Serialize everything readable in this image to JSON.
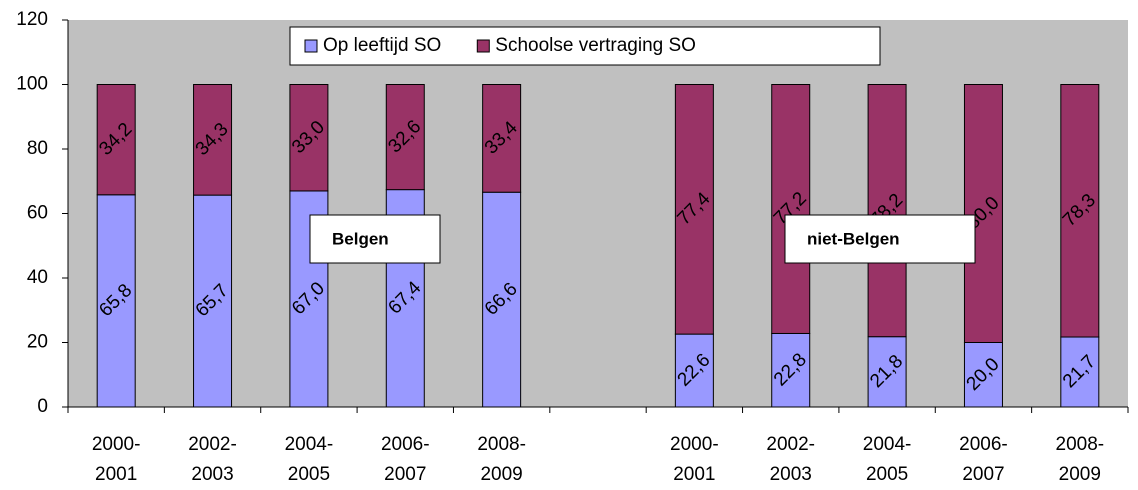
{
  "chart_data": {
    "type": "stacked-bar",
    "categories": [
      "2000-\n2001",
      "2002-\n2003",
      "2004-\n2005",
      "2006-\n2007",
      "2008-\n2009",
      null,
      "2000-\n2001",
      "2002-\n2003",
      "2004-\n2005",
      "2006-\n2007",
      "2008-\n2009"
    ],
    "series": [
      {
        "name": "Op leeftijd SO",
        "color": "#9999ff",
        "values": [
          65.8,
          65.7,
          67.0,
          67.4,
          66.6,
          null,
          22.6,
          22.8,
          21.8,
          20.0,
          21.7
        ],
        "value_labels": [
          "65,8",
          "65,7",
          "67,0",
          "67,4",
          "66,6",
          null,
          "22,6",
          "22,8",
          "21,8",
          "20,0",
          "21,7"
        ]
      },
      {
        "name": "Schoolse vertraging SO",
        "color": "#993366",
        "values": [
          34.2,
          34.3,
          33.0,
          32.6,
          33.4,
          null,
          77.4,
          77.2,
          78.2,
          80.0,
          78.3
        ],
        "value_labels": [
          "34,2",
          "34,3",
          "33,0",
          "32,6",
          "33,4",
          null,
          "77,4",
          "77,2",
          "78,2",
          "80,0",
          "78,3"
        ]
      }
    ],
    "annotations": [
      "Belgen",
      "niet-Belgen"
    ],
    "ylim": [
      0,
      120
    ],
    "yticks": [
      0,
      20,
      40,
      60,
      80,
      100,
      120
    ],
    "grid": false,
    "background": "#c0c0c0"
  }
}
